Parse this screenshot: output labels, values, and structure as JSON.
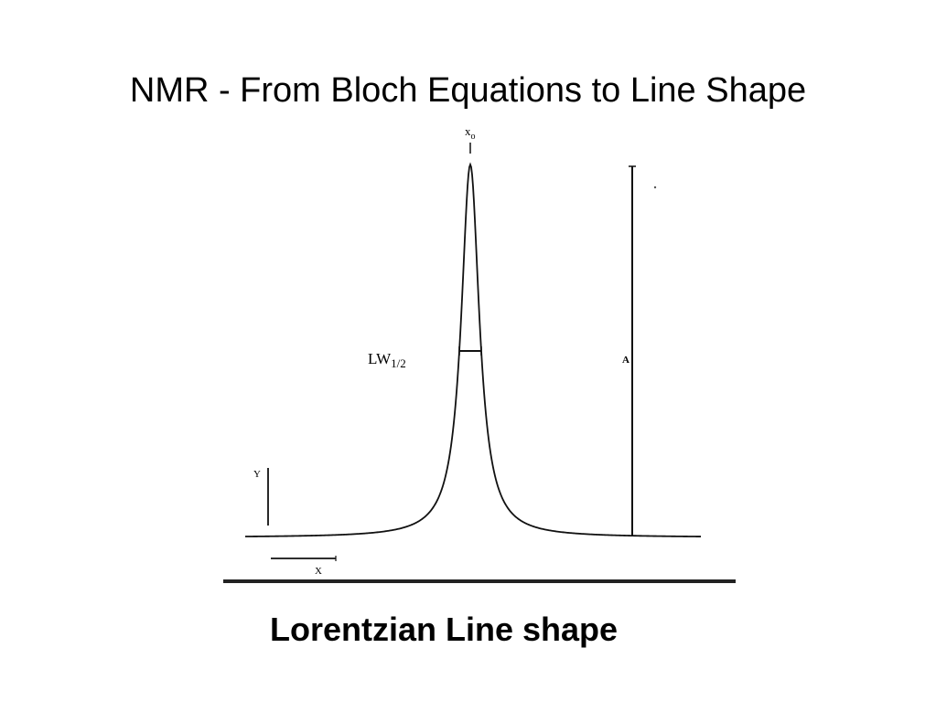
{
  "slide": {
    "title": "NMR - From Bloch Equations to Line Shape",
    "caption": "Lorentzian Line shape"
  },
  "figure": {
    "peak_label_main": "x",
    "peak_label_sub": "o",
    "linewidth_label_main": "LW",
    "linewidth_label_sub": "1/2",
    "amplitude_label": "A",
    "y_scale_label": "Y",
    "x_scale_label": "X"
  }
}
